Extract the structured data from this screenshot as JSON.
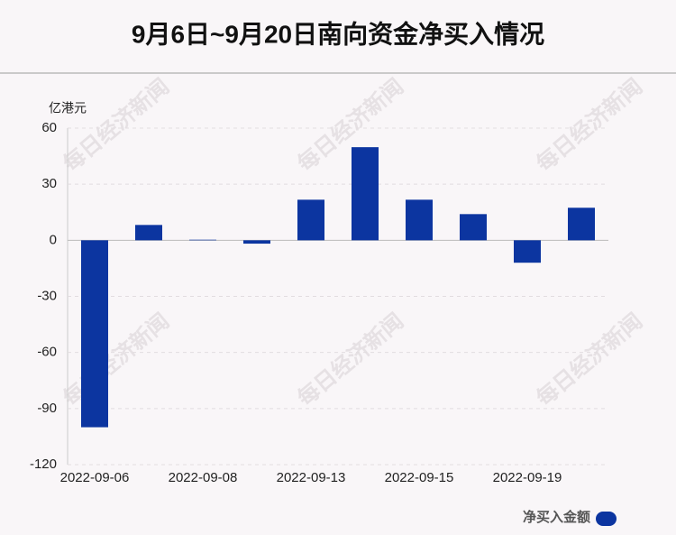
{
  "chart_data": {
    "type": "bar",
    "title": "9月6日~9月20日南向资金净买入情况",
    "y_axis_label": "亿港元",
    "watermark": "每日经济新闻",
    "categories": [
      "2022-09-06",
      null,
      "2022-09-08",
      null,
      "2022-09-13",
      null,
      "2022-09-15",
      null,
      "2022-09-19",
      null
    ],
    "series": [
      {
        "name": "净买入金额",
        "color": "#0c35a0",
        "values": [
          -100,
          8.2,
          0.3,
          -1.8,
          21.7,
          49.8,
          21.7,
          14,
          -12,
          17.4
        ]
      }
    ],
    "ylim": [
      -120,
      60
    ],
    "yticks": [
      -120,
      -90,
      -60,
      -30,
      0,
      30,
      60
    ],
    "grid": true,
    "legend": "bottom-right"
  }
}
